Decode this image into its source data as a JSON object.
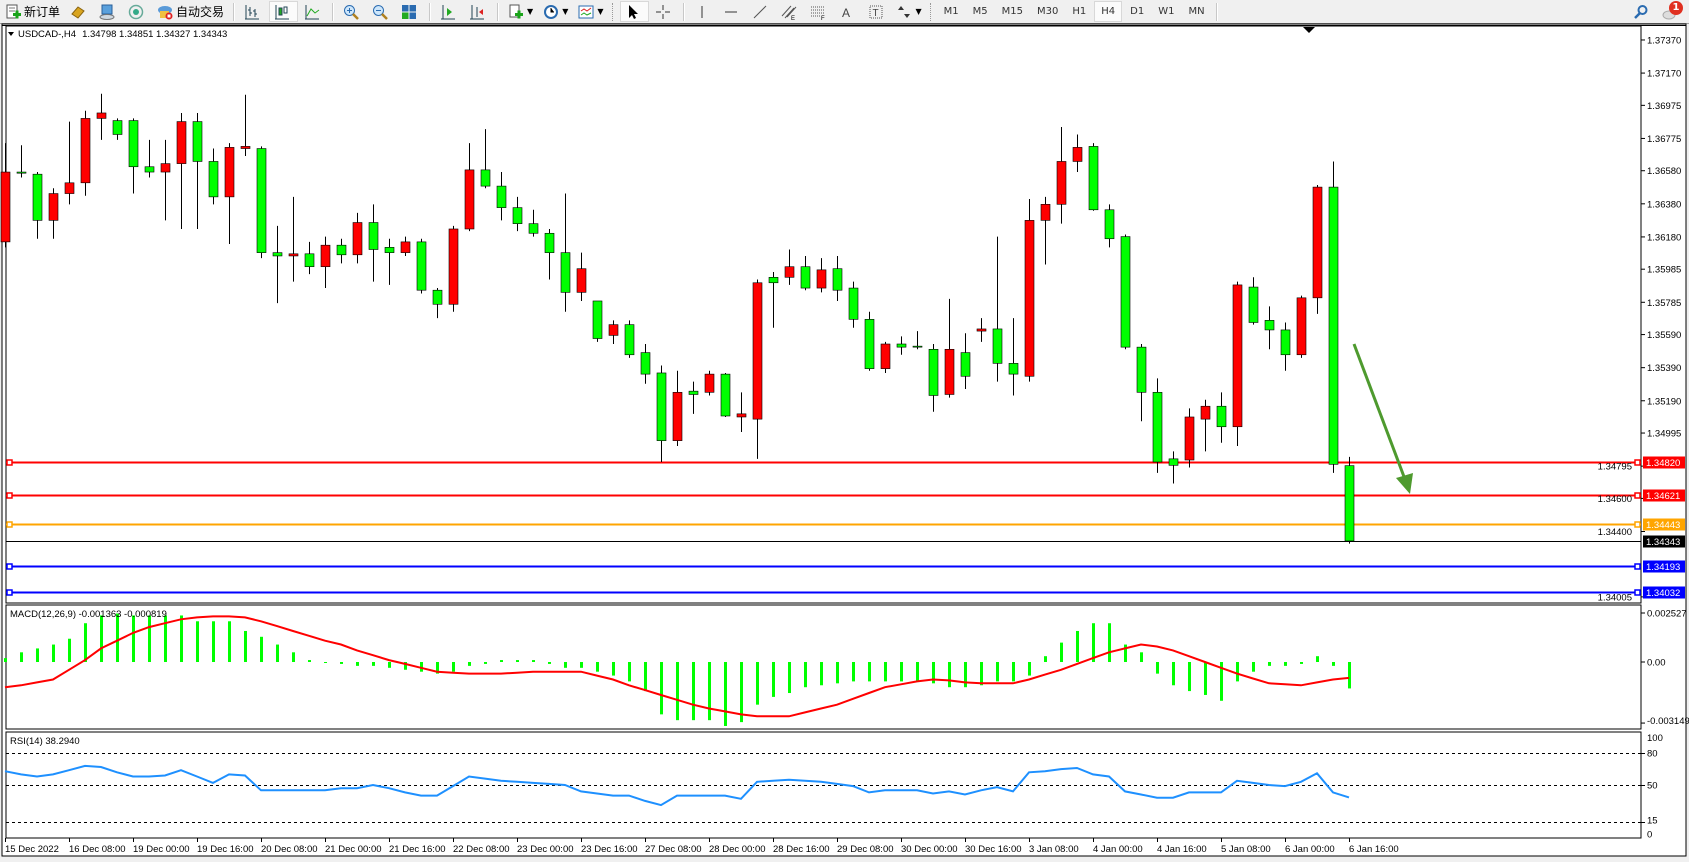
{
  "toolbar": {
    "new_order": "新订单",
    "auto_trading": "自动交易",
    "timeframes": [
      "M1",
      "M5",
      "M15",
      "M30",
      "H1",
      "H4",
      "D1",
      "W1",
      "MN"
    ],
    "active_timeframe": "H4",
    "notification_count": "1"
  },
  "chart": {
    "symbol": "USDCAD-,H4",
    "ohlc_text": "1.34798 1.34851 1.34327 1.34343",
    "colors": {
      "bull": "#ff0000",
      "bear": "#00ff00",
      "wick": "#000000",
      "background": "#ffffff"
    },
    "price_ticks": [
      "1.37370",
      "1.37170",
      "1.36975",
      "1.36775",
      "1.36580",
      "1.36380",
      "1.36180",
      "1.35985",
      "1.35785",
      "1.35590",
      "1.35390",
      "1.35190",
      "1.34995",
      "1.34795",
      "1.34600",
      "1.34400",
      "1.34005"
    ],
    "time_labels": [
      "15 Dec 2022",
      "16 Dec 08:00",
      "19 Dec 00:00",
      "19 Dec 16:00",
      "20 Dec 08:00",
      "21 Dec 00:00",
      "21 Dec 16:00",
      "22 Dec 08:00",
      "23 Dec 00:00",
      "23 Dec 16:00",
      "27 Dec 08:00",
      "28 Dec 00:00",
      "28 Dec 16:00",
      "29 Dec 08:00",
      "30 Dec 00:00",
      "30 Dec 16:00",
      "3 Jan 08:00",
      "4 Jan 00:00",
      "4 Jan 16:00",
      "5 Jan 08:00",
      "6 Jan 00:00",
      "6 Jan 16:00"
    ],
    "levels": [
      {
        "price": "1.34820",
        "color": "#ff0000"
      },
      {
        "price": "1.34621",
        "color": "#ff0000"
      },
      {
        "price": "1.34443",
        "color": "#ffa500"
      },
      {
        "price": "1.34343",
        "color": "#000000",
        "kind": "bid"
      },
      {
        "price": "1.34193",
        "color": "#0000ff"
      },
      {
        "price": "1.34032",
        "color": "#0000ff"
      }
    ],
    "annotation": {
      "type": "arrow",
      "color": "#4e9a2e",
      "direction": "down"
    }
  },
  "chart_data": {
    "type": "candlestick",
    "ylim": [
      1.3399,
      1.3752
    ],
    "candles": [
      [
        1.3615,
        1.36747,
        1.36117,
        1.36572
      ],
      [
        1.36572,
        1.36734,
        1.36539,
        1.36565
      ],
      [
        1.36559,
        1.36572,
        1.36169,
        1.3628
      ],
      [
        1.3628,
        1.36474,
        1.36169,
        1.36442
      ],
      [
        1.36442,
        1.36877,
        1.36377,
        1.36507
      ],
      [
        1.36507,
        1.36942,
        1.36429,
        1.36896
      ],
      [
        1.36896,
        1.37045,
        1.36766,
        1.36929
      ],
      [
        1.36883,
        1.36896,
        1.36766,
        1.36799
      ],
      [
        1.36883,
        1.36896,
        1.36442,
        1.36604
      ],
      [
        1.36604,
        1.36766,
        1.36539,
        1.36572
      ],
      [
        1.36572,
        1.36766,
        1.3628,
        1.36623
      ],
      [
        1.36623,
        1.36929,
        1.36228,
        1.36877
      ],
      [
        1.36877,
        1.36929,
        1.36228,
        1.36636
      ],
      [
        1.36636,
        1.36714,
        1.36377,
        1.36422
      ],
      [
        1.36422,
        1.36747,
        1.36137,
        1.36721
      ],
      [
        1.36714,
        1.37039,
        1.36669,
        1.36727
      ],
      [
        1.36714,
        1.36727,
        1.36052,
        1.36085
      ],
      [
        1.36085,
        1.36247,
        1.3578,
        1.36065
      ],
      [
        1.36065,
        1.36422,
        1.3591,
        1.36078
      ],
      [
        1.36078,
        1.3615,
        1.35955,
        1.36
      ],
      [
        1.36,
        1.36182,
        1.35871,
        1.3613
      ],
      [
        1.3613,
        1.36169,
        1.3602,
        1.36072
      ],
      [
        1.36072,
        1.36325,
        1.3602,
        1.36267
      ],
      [
        1.36267,
        1.36377,
        1.3591,
        1.36104
      ],
      [
        1.36117,
        1.36169,
        1.3589,
        1.36085
      ],
      [
        1.36085,
        1.36182,
        1.36065,
        1.3615
      ],
      [
        1.3615,
        1.36169,
        1.35838,
        1.35858
      ],
      [
        1.35858,
        1.35871,
        1.35689,
        1.35773
      ],
      [
        1.35773,
        1.36247,
        1.35728,
        1.36228
      ],
      [
        1.36228,
        1.36747,
        1.36215,
        1.36585
      ],
      [
        1.36585,
        1.36831,
        1.36474,
        1.36487
      ],
      [
        1.36487,
        1.36572,
        1.3628,
        1.36357
      ],
      [
        1.36357,
        1.36422,
        1.36215,
        1.3626
      ],
      [
        1.3626,
        1.36344,
        1.36182,
        1.36202
      ],
      [
        1.36202,
        1.36228,
        1.35923,
        1.36085
      ],
      [
        1.36085,
        1.36442,
        1.35728,
        1.35845
      ],
      [
        1.35845,
        1.36085,
        1.35793,
        1.35988
      ],
      [
        1.35793,
        1.35793,
        1.35546,
        1.35566
      ],
      [
        1.35585,
        1.35676,
        1.35533,
        1.3565
      ],
      [
        1.3565,
        1.35676,
        1.35449,
        1.35468
      ],
      [
        1.35481,
        1.35533,
        1.35293,
        1.35351
      ],
      [
        1.35358,
        1.35403,
        1.3482,
        1.34949
      ],
      [
        1.34949,
        1.35371,
        1.34917,
        1.35241
      ],
      [
        1.35248,
        1.35306,
        1.35111,
        1.35228
      ],
      [
        1.35241,
        1.35371,
        1.35222,
        1.35351
      ],
      [
        1.35351,
        1.35358,
        1.35092,
        1.35098
      ],
      [
        1.35092,
        1.35241,
        1.35001,
        1.35111
      ],
      [
        1.35079,
        1.35923,
        1.34839,
        1.35903
      ],
      [
        1.35936,
        1.35968,
        1.35631,
        1.35903
      ],
      [
        1.35936,
        1.36104,
        1.3589,
        1.36
      ],
      [
        1.36,
        1.36065,
        1.35858,
        1.35871
      ],
      [
        1.35871,
        1.36052,
        1.35845,
        1.35981
      ],
      [
        1.35988,
        1.36065,
        1.35793,
        1.35858
      ],
      [
        1.35871,
        1.3591,
        1.35631,
        1.35682
      ],
      [
        1.35682,
        1.35728,
        1.35371,
        1.35384
      ],
      [
        1.35384,
        1.35546,
        1.35358,
        1.35533
      ],
      [
        1.35533,
        1.35579,
        1.35468,
        1.35514
      ],
      [
        1.3552,
        1.35611,
        1.35501,
        1.35514
      ],
      [
        1.35501,
        1.35533,
        1.35124,
        1.35222
      ],
      [
        1.35228,
        1.35806,
        1.35209,
        1.35501
      ],
      [
        1.35481,
        1.35598,
        1.35261,
        1.35338
      ],
      [
        1.35611,
        1.35689,
        1.35546,
        1.35624
      ],
      [
        1.35624,
        1.36182,
        1.35306,
        1.35416
      ],
      [
        1.35416,
        1.35689,
        1.35222,
        1.35351
      ],
      [
        1.35338,
        1.36409,
        1.35306,
        1.3628
      ],
      [
        1.3628,
        1.36422,
        1.36013,
        1.36377
      ],
      [
        1.36377,
        1.36844,
        1.3626,
        1.36636
      ],
      [
        1.36636,
        1.36799,
        1.36572,
        1.36721
      ],
      [
        1.36727,
        1.36747,
        1.36338,
        1.36344
      ],
      [
        1.36344,
        1.36377,
        1.36117,
        1.36169
      ],
      [
        1.36182,
        1.36195,
        1.35501,
        1.35514
      ],
      [
        1.35514,
        1.35533,
        1.35066,
        1.35241
      ],
      [
        1.35241,
        1.35325,
        1.34754,
        1.3482
      ],
      [
        1.34839,
        1.34884,
        1.3469,
        1.348
      ],
      [
        1.34832,
        1.35144,
        1.34787,
        1.35092
      ],
      [
        1.35079,
        1.35196,
        1.34884,
        1.35157
      ],
      [
        1.35157,
        1.35241,
        1.34936,
        1.35033
      ],
      [
        1.35033,
        1.3591,
        1.34917,
        1.3589
      ],
      [
        1.35877,
        1.35936,
        1.3565,
        1.35663
      ],
      [
        1.35676,
        1.3576,
        1.35501,
        1.35618
      ],
      [
        1.35618,
        1.35663,
        1.35371,
        1.35468
      ],
      [
        1.35468,
        1.35825,
        1.35449,
        1.35812
      ],
      [
        1.35812,
        1.36494,
        1.35715,
        1.36481
      ],
      [
        1.36481,
        1.36636,
        1.34754,
        1.34806
      ],
      [
        1.34798,
        1.34851,
        1.34327,
        1.34343
      ]
    ],
    "macd": {
      "label": "MACD(12,26,9) -0.001363 -0.000819",
      "ticks": [
        "0.002527",
        "0.00",
        "-0.003149"
      ],
      "ylim": [
        -0.003149,
        0.002527
      ],
      "hist_color": "#00ff00",
      "signal_color": "#ff0000",
      "main": [
        0.0002,
        0.0005,
        0.0007,
        0.0009,
        0.0012,
        0.002,
        0.0024,
        0.0025,
        0.0024,
        0.0024,
        0.0024,
        0.0024,
        0.0021,
        0.0021,
        0.0021,
        0.0016,
        0.0013,
        0.0009,
        0.0005,
        0.0001,
        0.0,
        -0.0001,
        -0.0002,
        -0.0002,
        -0.0003,
        -0.0004,
        -0.0005,
        -0.0006,
        -0.0005,
        -0.0002,
        -0.0001,
        0.0001,
        0.0001,
        0.0001,
        -0.0001,
        -0.0003,
        -0.0003,
        -0.0005,
        -0.0007,
        -0.001,
        -0.0015,
        -0.0027,
        -0.003,
        -0.003,
        -0.003,
        -0.0033,
        -0.0031,
        -0.0022,
        -0.0018,
        -0.0016,
        -0.0013,
        -0.0012,
        -0.0011,
        -0.001,
        -0.001,
        -0.001,
        -0.001,
        -0.001,
        -0.0011,
        -0.0013,
        -0.0013,
        -0.0012,
        -0.001,
        -0.001,
        -0.0007,
        0.0003,
        0.001,
        0.0016,
        0.002,
        0.002,
        0.0009,
        0.0005,
        -0.0006,
        -0.0012,
        -0.0015,
        -0.0017,
        -0.002,
        -0.001,
        -0.0005,
        -0.0002,
        -0.0002,
        -0.0001,
        0.0003,
        -0.0002,
        -0.001363
      ],
      "signal": [
        -0.0013,
        -0.0012,
        -0.00105,
        -0.0009,
        -0.0004,
        0.0001,
        0.0007,
        0.0011,
        0.0015,
        0.0018,
        0.002,
        0.0022,
        0.0023,
        0.00235,
        0.00235,
        0.0023,
        0.0021,
        0.00185,
        0.0016,
        0.00135,
        0.0011,
        0.0009,
        0.0006,
        0.00035,
        0.0001,
        -0.0001,
        -0.0003,
        -0.0005,
        -0.00055,
        -0.0006,
        -0.0006,
        -0.0006,
        -0.00055,
        -0.0005,
        -0.0005,
        -0.0005,
        -0.0005,
        -0.0007,
        -0.0009,
        -0.0012,
        -0.00145,
        -0.0017,
        -0.00195,
        -0.0022,
        -0.0024,
        -0.00255,
        -0.0027,
        -0.0028,
        -0.0028,
        -0.0028,
        -0.0026,
        -0.0024,
        -0.0022,
        -0.0019,
        -0.0016,
        -0.0013,
        -0.00115,
        -0.001,
        -0.0009,
        -0.00095,
        -0.00105,
        -0.0011,
        -0.0011,
        -0.0011,
        -0.0009,
        -0.00065,
        -0.0004,
        -0.0001,
        0.0002,
        0.0005,
        0.0007,
        0.0009,
        0.0008,
        0.0006,
        0.0003,
        0.0,
        -0.0003,
        -0.0006,
        -0.00085,
        -0.0011,
        -0.00115,
        -0.0012,
        -0.00105,
        -0.0009,
        -0.000819
      ]
    },
    "rsi": {
      "label": "RSI(14) 38.2940",
      "ticks": [
        "100",
        "80",
        "50",
        "15",
        "0"
      ],
      "levels": [
        80,
        50,
        15
      ],
      "ylim": [
        0,
        100
      ],
      "color": "#1e90ff",
      "values": [
        63,
        60,
        58,
        60,
        64,
        68,
        67,
        62,
        58,
        58,
        59,
        64,
        58,
        52,
        60,
        59,
        45,
        45,
        45,
        45,
        45,
        47,
        47,
        50,
        47,
        43,
        40,
        40,
        49,
        58,
        56,
        54,
        53,
        52,
        51,
        50,
        44,
        42,
        40,
        40,
        35,
        31,
        40,
        40,
        40,
        40,
        37,
        53,
        54,
        55,
        54,
        53,
        51,
        49,
        43,
        45,
        45,
        45,
        42,
        44,
        41,
        45,
        48,
        44,
        62,
        63,
        65,
        66,
        60,
        58,
        44,
        41,
        38,
        38,
        43,
        43,
        43,
        54,
        52,
        50,
        49,
        53,
        61,
        43,
        38.294
      ]
    }
  }
}
